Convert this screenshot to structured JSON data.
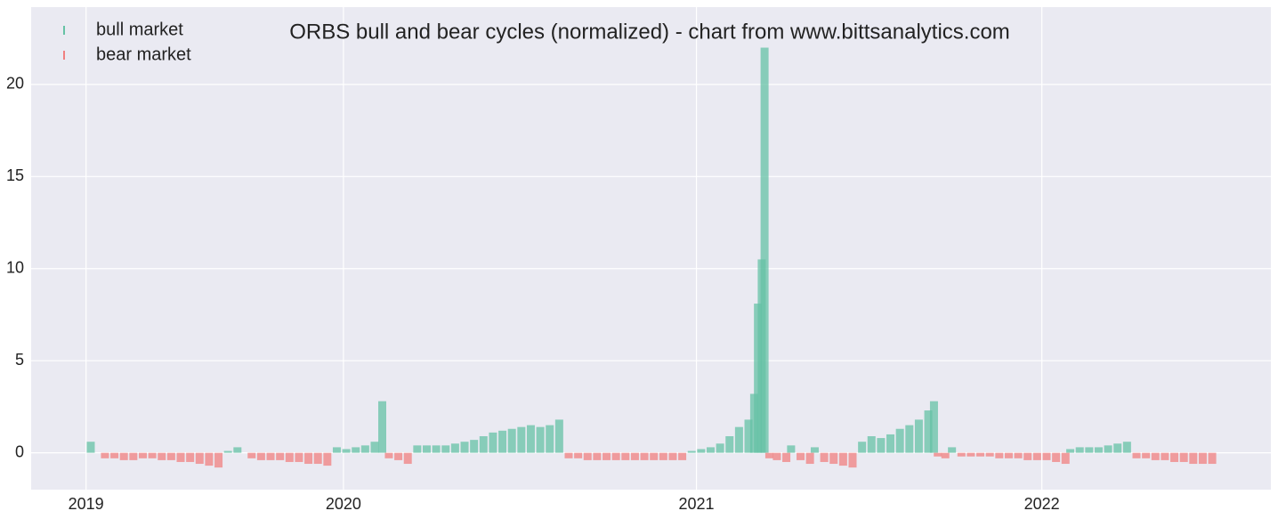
{
  "chart_data": {
    "type": "bar",
    "title": "ORBS bull and bear cycles (normalized)  - chart from www.bittsanalytics.com",
    "xlim": [
      -58,
      1252
    ],
    "xticks": [
      {
        "value": 0,
        "label": "2019"
      },
      {
        "value": 272,
        "label": "2020"
      },
      {
        "value": 645,
        "label": "2021"
      },
      {
        "value": 1010,
        "label": "2022"
      }
    ],
    "ylim": [
      -2,
      24.2
    ],
    "yticks": [
      0,
      5,
      10,
      15,
      20
    ],
    "grid": true,
    "legend": "upper left",
    "series": [
      {
        "name": "bull market",
        "color": "#66c2a5",
        "x": [
          5,
          150,
          160,
          265,
          275,
          285,
          295,
          305,
          313,
          350,
          360,
          370,
          380,
          390,
          400,
          410,
          420,
          430,
          440,
          450,
          460,
          470,
          480,
          490,
          500,
          640,
          650,
          660,
          670,
          680,
          690,
          700,
          706,
          710,
          714,
          717,
          745,
          770,
          820,
          830,
          840,
          850,
          860,
          870,
          880,
          890,
          896,
          915,
          1040,
          1050,
          1060,
          1070,
          1080,
          1090,
          1100
        ],
        "values": [
          0.6,
          0.1,
          0.3,
          0.3,
          0.2,
          0.3,
          0.4,
          0.6,
          2.8,
          0.4,
          0.4,
          0.4,
          0.4,
          0.5,
          0.6,
          0.7,
          0.9,
          1.1,
          1.2,
          1.3,
          1.4,
          1.5,
          1.4,
          1.5,
          1.8,
          0.1,
          0.2,
          0.3,
          0.5,
          0.9,
          1.4,
          1.8,
          3.2,
          8.1,
          10.5,
          22,
          0.4,
          0.3,
          0.6,
          0.9,
          0.8,
          1.0,
          1.3,
          1.5,
          1.8,
          2.3,
          2.8,
          0.3,
          0.2,
          0.3,
          0.3,
          0.3,
          0.4,
          0.5,
          0.6
        ]
      },
      {
        "name": "bear market",
        "color": "#f08080",
        "x": [
          20,
          30,
          40,
          50,
          60,
          70,
          80,
          90,
          100,
          110,
          120,
          130,
          140,
          175,
          185,
          195,
          205,
          215,
          225,
          235,
          245,
          255,
          320,
          330,
          340,
          510,
          520,
          530,
          540,
          550,
          560,
          570,
          580,
          590,
          600,
          610,
          620,
          630,
          722,
          730,
          740,
          755,
          765,
          780,
          790,
          800,
          810,
          900,
          908,
          925,
          935,
          945,
          955,
          965,
          975,
          985,
          995,
          1005,
          1015,
          1025,
          1035,
          1110,
          1120,
          1130,
          1140,
          1150,
          1160,
          1170,
          1180,
          1190
        ],
        "values": [
          -0.3,
          -0.3,
          -0.4,
          -0.4,
          -0.3,
          -0.3,
          -0.4,
          -0.4,
          -0.5,
          -0.5,
          -0.6,
          -0.7,
          -0.8,
          -0.3,
          -0.4,
          -0.4,
          -0.4,
          -0.5,
          -0.5,
          -0.6,
          -0.6,
          -0.7,
          -0.3,
          -0.4,
          -0.6,
          -0.3,
          -0.3,
          -0.4,
          -0.4,
          -0.4,
          -0.4,
          -0.4,
          -0.4,
          -0.4,
          -0.4,
          -0.4,
          -0.4,
          -0.4,
          -0.3,
          -0.4,
          -0.5,
          -0.4,
          -0.6,
          -0.5,
          -0.6,
          -0.7,
          -0.8,
          -0.2,
          -0.3,
          -0.2,
          -0.2,
          -0.2,
          -0.2,
          -0.3,
          -0.3,
          -0.3,
          -0.4,
          -0.4,
          -0.4,
          -0.5,
          -0.6,
          -0.3,
          -0.3,
          -0.4,
          -0.4,
          -0.5,
          -0.5,
          -0.6,
          -0.6,
          -0.6
        ]
      }
    ]
  }
}
